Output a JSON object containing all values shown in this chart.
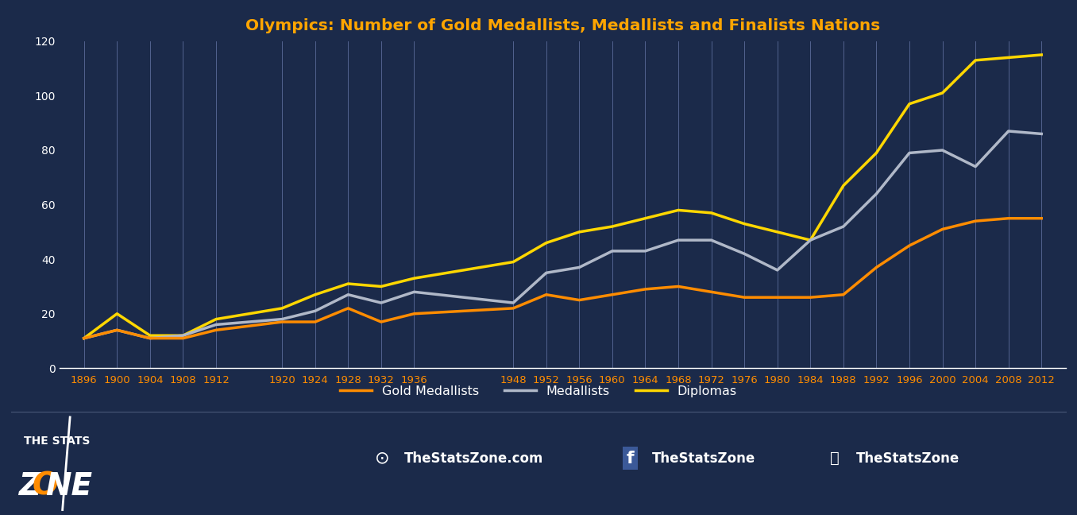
{
  "title": "Olympics: Number of Gold Medallists, Medallists and Finalists Nations",
  "title_color": "#FFA500",
  "background_color": "#1b2a4a",
  "plot_background_color": "#1b2a4a",
  "grid_color": "#6070a0",
  "text_color": "#ffffff",
  "years": [
    1896,
    1900,
    1904,
    1908,
    1912,
    1920,
    1924,
    1928,
    1932,
    1936,
    1948,
    1952,
    1956,
    1960,
    1964,
    1968,
    1972,
    1976,
    1980,
    1984,
    1988,
    1992,
    1996,
    2000,
    2004,
    2008,
    2012
  ],
  "gold_medallists": [
    11,
    14,
    11,
    11,
    14,
    17,
    17,
    22,
    17,
    20,
    22,
    27,
    25,
    27,
    29,
    30,
    28,
    26,
    26,
    26,
    27,
    37,
    45,
    51,
    54,
    55,
    55
  ],
  "medallists": [
    11,
    14,
    11,
    12,
    16,
    18,
    21,
    27,
    24,
    28,
    24,
    35,
    37,
    43,
    43,
    47,
    47,
    42,
    36,
    47,
    52,
    64,
    79,
    80,
    74,
    87,
    86
  ],
  "diplomas": [
    11,
    20,
    12,
    12,
    18,
    22,
    27,
    31,
    30,
    33,
    39,
    46,
    50,
    52,
    55,
    58,
    57,
    53,
    50,
    47,
    67,
    79,
    97,
    101,
    113,
    114,
    115
  ],
  "ylim": [
    0,
    120
  ],
  "yticks": [
    0,
    20,
    40,
    60,
    80,
    100,
    120
  ],
  "line_width": 2.5,
  "gold_color": "#FF8C00",
  "medallists_color": "#b0b8c8",
  "diplomas_color": "#FFD700",
  "legend_labels": [
    "Gold Medallists",
    "Medallists",
    "Diplomas"
  ],
  "footer_bg": "#1b2a4a"
}
